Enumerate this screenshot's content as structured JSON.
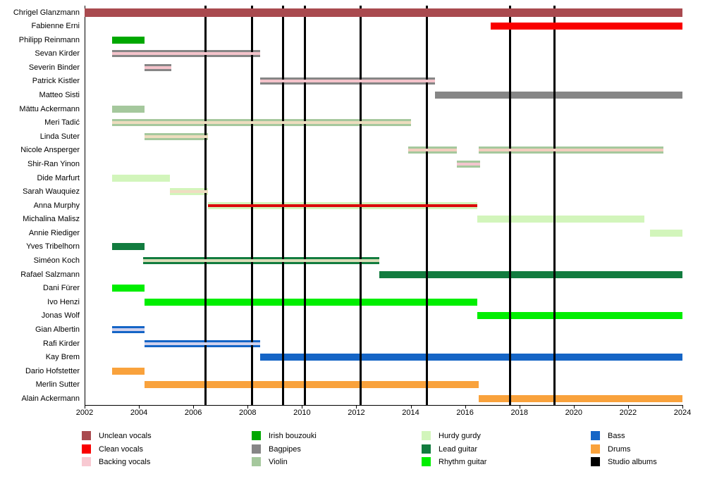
{
  "chart_data": {
    "type": "gantt-timeline",
    "title": "",
    "x_axis": {
      "min": 2002,
      "max": 2024,
      "tick_labels": [
        "2002",
        "2004",
        "2006",
        "2008",
        "2010",
        "2012",
        "2014",
        "2016",
        "2018",
        "2020",
        "2022",
        "2024"
      ]
    },
    "roles": {
      "unclean_vocals": {
        "label": "Unclean vocals",
        "color": "#A94A4F"
      },
      "clean_vocals": {
        "label": "Clean vocals",
        "color": "#F90000"
      },
      "backing_vocals": {
        "label": "Backing vocals",
        "color": "#F8C9D2"
      },
      "irish_bouzouki": {
        "label": "Irish bouzouki",
        "color": "#00A800"
      },
      "bagpipes": {
        "label": "Bagpipes",
        "color": "#868686"
      },
      "violin": {
        "label": "Violin",
        "color": "#A5C89D"
      },
      "hurdy_gurdy": {
        "label": "Hurdy gurdy",
        "color": "#D2F5BB"
      },
      "lead_guitar": {
        "label": "Lead guitar",
        "color": "#127C3F"
      },
      "rhythm_guitar": {
        "label": "Rhythm guitar",
        "color": "#00EE00"
      },
      "bass": {
        "label": "Bass",
        "color": "#1565C6"
      },
      "drums": {
        "label": "Drums",
        "color": "#F9A23C"
      },
      "studio_albums": {
        "label": "Studio albums",
        "color": "#000000"
      }
    },
    "legend_columns": [
      [
        "unclean_vocals",
        "clean_vocals",
        "backing_vocals"
      ],
      [
        "irish_bouzouki",
        "bagpipes",
        "violin"
      ],
      [
        "hurdy_gurdy",
        "lead_guitar",
        "rhythm_guitar"
      ],
      [
        "bass",
        "drums",
        "studio_albums"
      ]
    ],
    "album_lines": {
      "role": "studio_albums",
      "years": [
        2006.45,
        2008.15,
        2009.3,
        2010.1,
        2012.15,
        2014.6,
        2017.65,
        2019.3
      ]
    },
    "members": [
      {
        "name": "Chrigel Glanzmann",
        "bars": [
          {
            "start": 2002.0,
            "end": 2024.0,
            "role": "unclean_vocals",
            "front": true
          }
        ]
      },
      {
        "name": "Fabienne Erni",
        "bars": [
          {
            "start": 2016.95,
            "end": 2024.0,
            "role": "clean_vocals",
            "front": true
          }
        ]
      },
      {
        "name": "Philipp Reinmann",
        "bars": [
          {
            "start": 2003.0,
            "end": 2004.2,
            "role": "irish_bouzouki"
          }
        ]
      },
      {
        "name": "Sevan Kirder",
        "bars": [
          {
            "start": 2003.0,
            "end": 2008.45,
            "role": "bagpipes",
            "stripe": {
              "role": "backing_vocals",
              "color": "#F4C3CB"
            }
          }
        ]
      },
      {
        "name": "Severin Binder",
        "bars": [
          {
            "start": 2004.2,
            "end": 2005.2,
            "role": "bagpipes",
            "stripe": {
              "role": "backing_vocals",
              "color": "#F4C3CB"
            }
          }
        ]
      },
      {
        "name": "Patrick Kistler",
        "bars": [
          {
            "start": 2008.45,
            "end": 2014.9,
            "role": "bagpipes",
            "stripe": {
              "role": "backing_vocals",
              "color": "#F4C3CB"
            }
          }
        ]
      },
      {
        "name": "Matteo Sisti",
        "bars": [
          {
            "start": 2014.9,
            "end": 2024.0,
            "role": "bagpipes"
          }
        ]
      },
      {
        "name": "Mättu Ackermann",
        "bars": [
          {
            "start": 2003.0,
            "end": 2004.2,
            "role": "violin"
          }
        ]
      },
      {
        "name": "Meri Tadić",
        "bars": [
          {
            "start": 2003.0,
            "end": 2014.0,
            "role": "violin",
            "stripe": {
              "role": "backing_vocals",
              "color": "#EDDCBE"
            }
          }
        ]
      },
      {
        "name": "Linda Suter",
        "bars": [
          {
            "start": 2004.2,
            "end": 2006.55,
            "role": "violin",
            "stripe": {
              "role": "backing_vocals",
              "color": "#EDDCBE"
            }
          }
        ]
      },
      {
        "name": "Nicole Ansperger",
        "bars": [
          {
            "start": 2013.9,
            "end": 2015.7,
            "role": "violin",
            "stripe": {
              "role": "backing_vocals",
              "color": "#F2CDBD"
            }
          },
          {
            "start": 2016.5,
            "end": 2023.3,
            "role": "violin",
            "stripe": {
              "role": "backing_vocals",
              "color": "#F2CDBD"
            }
          }
        ]
      },
      {
        "name": "Shir-Ran Yinon",
        "bars": [
          {
            "start": 2015.7,
            "end": 2016.55,
            "role": "violin",
            "stripe": {
              "role": "backing_vocals",
              "color": "#F3C6CE"
            }
          }
        ]
      },
      {
        "name": "Dide Marfurt",
        "bars": [
          {
            "start": 2003.0,
            "end": 2005.15,
            "role": "hurdy_gurdy"
          }
        ]
      },
      {
        "name": "Sarah Wauquiez",
        "bars": [
          {
            "start": 2005.15,
            "end": 2006.55,
            "role": "hurdy_gurdy",
            "stripe": {
              "role": "backing_vocals",
              "color": "#EFDDC2"
            }
          }
        ]
      },
      {
        "name": "Anna Murphy",
        "bars": [
          {
            "start": 2006.55,
            "end": 2016.45,
            "role": "hurdy_gurdy",
            "stripe": {
              "role": "clean_vocals",
              "color": "#DC0A0A"
            }
          }
        ]
      },
      {
        "name": "Michalina Malisz",
        "bars": [
          {
            "start": 2016.45,
            "end": 2022.6,
            "role": "hurdy_gurdy"
          }
        ]
      },
      {
        "name": "Annie Riediger",
        "bars": [
          {
            "start": 2022.8,
            "end": 2024.0,
            "role": "hurdy_gurdy"
          }
        ]
      },
      {
        "name": "Yves Tribelhorn",
        "bars": [
          {
            "start": 2003.0,
            "end": 2004.2,
            "role": "lead_guitar"
          }
        ]
      },
      {
        "name": "Siméon Koch",
        "bars": [
          {
            "start": 2004.15,
            "end": 2012.85,
            "role": "lead_guitar",
            "stripe": {
              "role": "backing_vocals",
              "color": "#D9DDB8"
            }
          }
        ]
      },
      {
        "name": "Rafael Salzmann",
        "bars": [
          {
            "start": 2012.85,
            "end": 2024.0,
            "role": "lead_guitar"
          }
        ]
      },
      {
        "name": "Dani Fürer",
        "bars": [
          {
            "start": 2003.0,
            "end": 2004.2,
            "role": "rhythm_guitar"
          }
        ]
      },
      {
        "name": "Ivo Henzi",
        "bars": [
          {
            "start": 2004.2,
            "end": 2016.45,
            "role": "rhythm_guitar"
          }
        ]
      },
      {
        "name": "Jonas Wolf",
        "bars": [
          {
            "start": 2016.45,
            "end": 2024.0,
            "role": "rhythm_guitar"
          }
        ]
      },
      {
        "name": "Gian Albertin",
        "bars": [
          {
            "start": 2003.0,
            "end": 2004.2,
            "role": "bass",
            "stripe": {
              "role": "backing_vocals",
              "color": "#D0D1EC"
            }
          }
        ]
      },
      {
        "name": "Rafi Kirder",
        "bars": [
          {
            "start": 2004.2,
            "end": 2008.45,
            "role": "bass",
            "stripe": {
              "role": "backing_vocals",
              "color": "#D0D1EC"
            }
          }
        ]
      },
      {
        "name": "Kay Brem",
        "bars": [
          {
            "start": 2008.45,
            "end": 2024.0,
            "role": "bass"
          }
        ]
      },
      {
        "name": "Dario Hofstetter",
        "bars": [
          {
            "start": 2003.0,
            "end": 2004.2,
            "role": "drums"
          }
        ]
      },
      {
        "name": "Merlin Sutter",
        "bars": [
          {
            "start": 2004.2,
            "end": 2016.5,
            "role": "drums"
          }
        ]
      },
      {
        "name": "Alain Ackermann",
        "bars": [
          {
            "start": 2016.5,
            "end": 2024.0,
            "role": "drums"
          }
        ]
      }
    ]
  }
}
